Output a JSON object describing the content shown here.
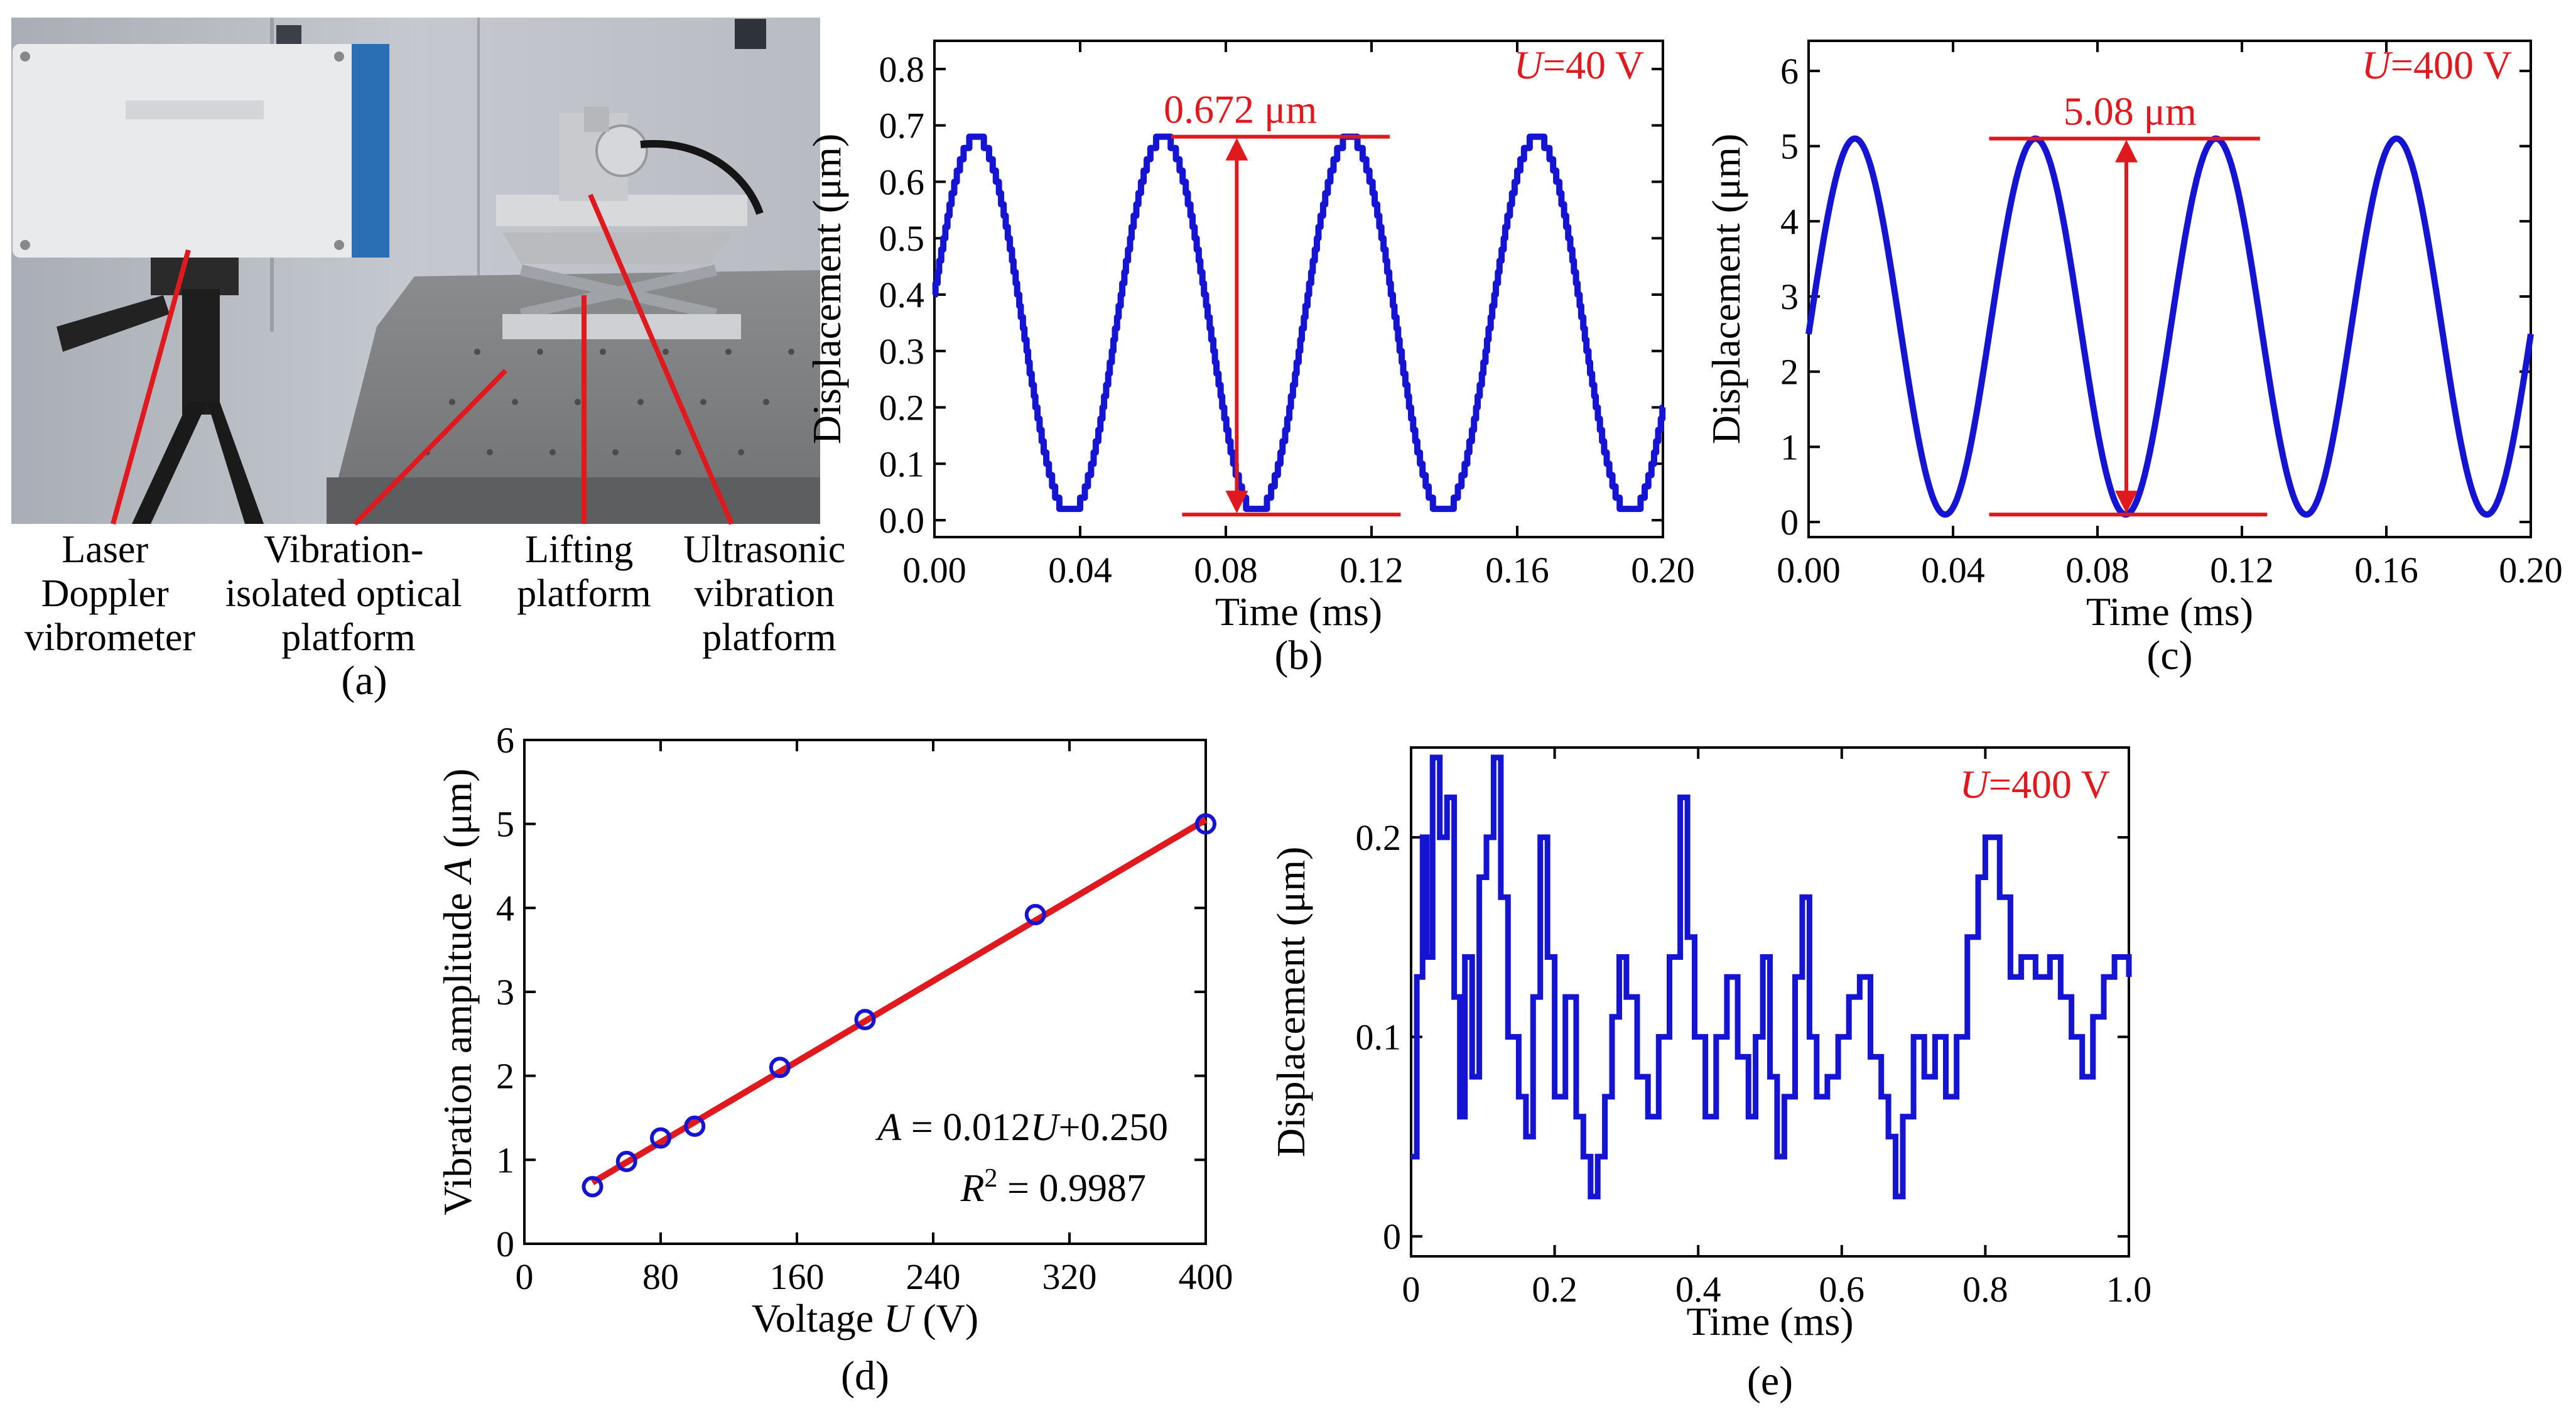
{
  "colors": {
    "series": "#1414d2",
    "annotation": "#e0191f",
    "axis": "#000000"
  },
  "panel_a": {
    "label": "(a)",
    "annotations": [
      {
        "lines": [
          "Laser",
          "Doppler",
          "vibrometer"
        ]
      },
      {
        "lines": [
          "Vibration-",
          "isolated optical",
          "platform"
        ]
      },
      {
        "lines": [
          "Lifting",
          "platform"
        ]
      },
      {
        "lines": [
          "Ultrasonic",
          "vibration",
          "platform"
        ]
      }
    ]
  },
  "chart_data": [
    {
      "id": "b",
      "type": "line",
      "label": "(b)",
      "xlabel": "Time (ms)",
      "ylabel": "Displacement (μm)",
      "xlim": [
        0,
        0.2
      ],
      "ylim": [
        -0.03,
        0.85
      ],
      "xticks": [
        "0.00",
        "0.04",
        "0.08",
        "0.12",
        "0.16",
        "0.20"
      ],
      "yticks": [
        "0.0",
        "0.1",
        "0.2",
        "0.3",
        "0.4",
        "0.5",
        "0.6",
        "0.7",
        "0.8"
      ],
      "condition": "U=40 V",
      "condition_symbol": "U",
      "condition_value": "=40 V",
      "amplitude_label": "0.672 μm",
      "amplitude": 0.672,
      "series": [
        {
          "name": "displacement",
          "frequency_kHz": 19.5,
          "offset": 0.345,
          "peak": 0.68,
          "trough": 0.01,
          "phase_start": 0.4,
          "quantization": 0.02,
          "shape": "stepped triangle-like sine"
        }
      ]
    },
    {
      "id": "c",
      "type": "line",
      "label": "(c)",
      "xlabel": "Time (ms)",
      "ylabel": "Displacement (μm)",
      "xlim": [
        0,
        0.2
      ],
      "ylim": [
        -0.2,
        6.4
      ],
      "xticks": [
        "0.00",
        "0.04",
        "0.08",
        "0.12",
        "0.16",
        "0.20"
      ],
      "yticks": [
        "0",
        "1",
        "2",
        "3",
        "4",
        "5",
        "6"
      ],
      "condition": "U=400 V",
      "condition_symbol": "U",
      "condition_value": "=400 V",
      "amplitude_label": "5.08 μm",
      "amplitude": 5.08,
      "series": [
        {
          "name": "displacement",
          "frequency_kHz": 20,
          "offset": 2.6,
          "peak": 5.1,
          "trough": 0.1,
          "phase_start": 2.5,
          "shape": "sine"
        }
      ]
    },
    {
      "id": "d",
      "type": "scatter",
      "label": "(d)",
      "xlabel": "Voltage U (V)",
      "xlabel_pre": "Voltage ",
      "xlabel_sym": "U",
      "xlabel_post": " (V)",
      "ylabel": "Vibration amplitude A (μm)",
      "ylabel_pre": "Vibration amplitude ",
      "ylabel_sym": "A",
      "ylabel_post": " (μm)",
      "xlim": [
        0,
        400
      ],
      "ylim": [
        0,
        6
      ],
      "xticks": [
        "0",
        "80",
        "160",
        "240",
        "320",
        "400"
      ],
      "yticks": [
        "0",
        "1",
        "2",
        "3",
        "4",
        "5",
        "6"
      ],
      "x": [
        40,
        60,
        80,
        100,
        150,
        200,
        300,
        400
      ],
      "y": [
        0.68,
        0.98,
        1.26,
        1.4,
        2.1,
        2.67,
        3.92,
        5.0
      ],
      "fit": {
        "slope": 0.012,
        "intercept": 0.25,
        "x_range": [
          40,
          400
        ]
      },
      "equation": "A = 0.012U+0.250",
      "r_squared": "R² = 0.9987"
    },
    {
      "id": "e",
      "type": "line",
      "label": "(e)",
      "xlabel": "Time (ms)",
      "ylabel": "Displacement (μm)",
      "xlim": [
        0,
        1.0
      ],
      "ylim": [
        -0.01,
        0.245
      ],
      "xticks": [
        "0",
        "0.2",
        "0.4",
        "0.6",
        "0.8",
        "1.0"
      ],
      "yticks": [
        "0",
        "0.1",
        "0.2"
      ],
      "condition": "U=400 V",
      "condition_symbol": "U",
      "condition_value": "=400 V",
      "series": [
        {
          "name": "displacement",
          "points": [
            [
              0,
              0.04
            ],
            [
              0.008,
              0.13
            ],
            [
              0.016,
              0.2
            ],
            [
              0.022,
              0.14
            ],
            [
              0.03,
              0.24
            ],
            [
              0.04,
              0.2
            ],
            [
              0.05,
              0.22
            ],
            [
              0.06,
              0.12
            ],
            [
              0.068,
              0.06
            ],
            [
              0.075,
              0.14
            ],
            [
              0.085,
              0.08
            ],
            [
              0.095,
              0.18
            ],
            [
              0.105,
              0.2
            ],
            [
              0.115,
              0.24
            ],
            [
              0.125,
              0.17
            ],
            [
              0.135,
              0.1
            ],
            [
              0.15,
              0.07
            ],
            [
              0.16,
              0.05
            ],
            [
              0.17,
              0.12
            ],
            [
              0.18,
              0.2
            ],
            [
              0.19,
              0.14
            ],
            [
              0.2,
              0.07
            ],
            [
              0.215,
              0.12
            ],
            [
              0.23,
              0.06
            ],
            [
              0.24,
              0.04
            ],
            [
              0.25,
              0.02
            ],
            [
              0.26,
              0.04
            ],
            [
              0.27,
              0.07
            ],
            [
              0.28,
              0.11
            ],
            [
              0.29,
              0.14
            ],
            [
              0.3,
              0.12
            ],
            [
              0.315,
              0.08
            ],
            [
              0.33,
              0.06
            ],
            [
              0.345,
              0.1
            ],
            [
              0.36,
              0.14
            ],
            [
              0.375,
              0.22
            ],
            [
              0.385,
              0.15
            ],
            [
              0.395,
              0.1
            ],
            [
              0.41,
              0.06
            ],
            [
              0.425,
              0.1
            ],
            [
              0.44,
              0.13
            ],
            [
              0.455,
              0.09
            ],
            [
              0.47,
              0.06
            ],
            [
              0.48,
              0.1
            ],
            [
              0.49,
              0.14
            ],
            [
              0.5,
              0.08
            ],
            [
              0.51,
              0.04
            ],
            [
              0.52,
              0.07
            ],
            [
              0.535,
              0.13
            ],
            [
              0.545,
              0.17
            ],
            [
              0.555,
              0.1
            ],
            [
              0.565,
              0.07
            ],
            [
              0.58,
              0.08
            ],
            [
              0.595,
              0.1
            ],
            [
              0.61,
              0.12
            ],
            [
              0.625,
              0.13
            ],
            [
              0.64,
              0.09
            ],
            [
              0.655,
              0.07
            ],
            [
              0.665,
              0.05
            ],
            [
              0.675,
              0.02
            ],
            [
              0.685,
              0.06
            ],
            [
              0.7,
              0.1
            ],
            [
              0.715,
              0.08
            ],
            [
              0.73,
              0.1
            ],
            [
              0.745,
              0.07
            ],
            [
              0.76,
              0.1
            ],
            [
              0.775,
              0.15
            ],
            [
              0.79,
              0.18
            ],
            [
              0.8,
              0.2
            ],
            [
              0.81,
              0.2
            ],
            [
              0.82,
              0.17
            ],
            [
              0.835,
              0.13
            ],
            [
              0.85,
              0.14
            ],
            [
              0.87,
              0.13
            ],
            [
              0.89,
              0.14
            ],
            [
              0.905,
              0.12
            ],
            [
              0.92,
              0.1
            ],
            [
              0.935,
              0.08
            ],
            [
              0.95,
              0.11
            ],
            [
              0.965,
              0.13
            ],
            [
              0.98,
              0.14
            ],
            [
              1.0,
              0.13
            ]
          ]
        }
      ]
    }
  ]
}
